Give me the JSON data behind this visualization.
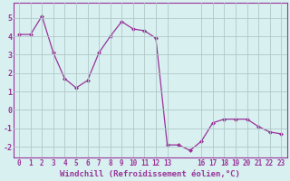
{
  "x": [
    0,
    1,
    2,
    3,
    4,
    5,
    6,
    7,
    8,
    9,
    10,
    11,
    12,
    13,
    14,
    15,
    16,
    17,
    18,
    19,
    20,
    21,
    22,
    23
  ],
  "y": [
    4.1,
    4.1,
    5.1,
    3.1,
    1.7,
    1.2,
    1.6,
    3.1,
    4.0,
    4.8,
    4.4,
    4.3,
    3.9,
    -1.9,
    -1.9,
    -2.2,
    -1.7,
    -0.7,
    -0.5,
    -0.5,
    -0.5,
    -0.9,
    -1.2,
    -1.3
  ],
  "xlim": [
    -0.5,
    23.5
  ],
  "ylim": [
    -2.6,
    5.8
  ],
  "yticks": [
    -2,
    -1,
    0,
    1,
    2,
    3,
    4,
    5
  ],
  "xtick_vals": [
    0,
    1,
    2,
    3,
    4,
    5,
    6,
    7,
    8,
    9,
    10,
    11,
    12,
    13,
    16,
    17,
    18,
    19,
    20,
    21,
    22,
    23
  ],
  "xtick_labels": [
    "0",
    "1",
    "2",
    "3",
    "4",
    "5",
    "6",
    "7",
    "8",
    "9",
    "10",
    "11",
    "12",
    "13",
    "16",
    "17",
    "18",
    "19",
    "20",
    "21",
    "22",
    "23"
  ],
  "xlabel": "Windchill (Refroidissement éolien,°C)",
  "line_color": "#993399",
  "marker": "D",
  "marker_size": 2.0,
  "bg_color": "#d8f0f0",
  "grid_color": "#b0c8c8",
  "tick_fontsize": 5.5,
  "xlabel_fontsize": 6.5
}
